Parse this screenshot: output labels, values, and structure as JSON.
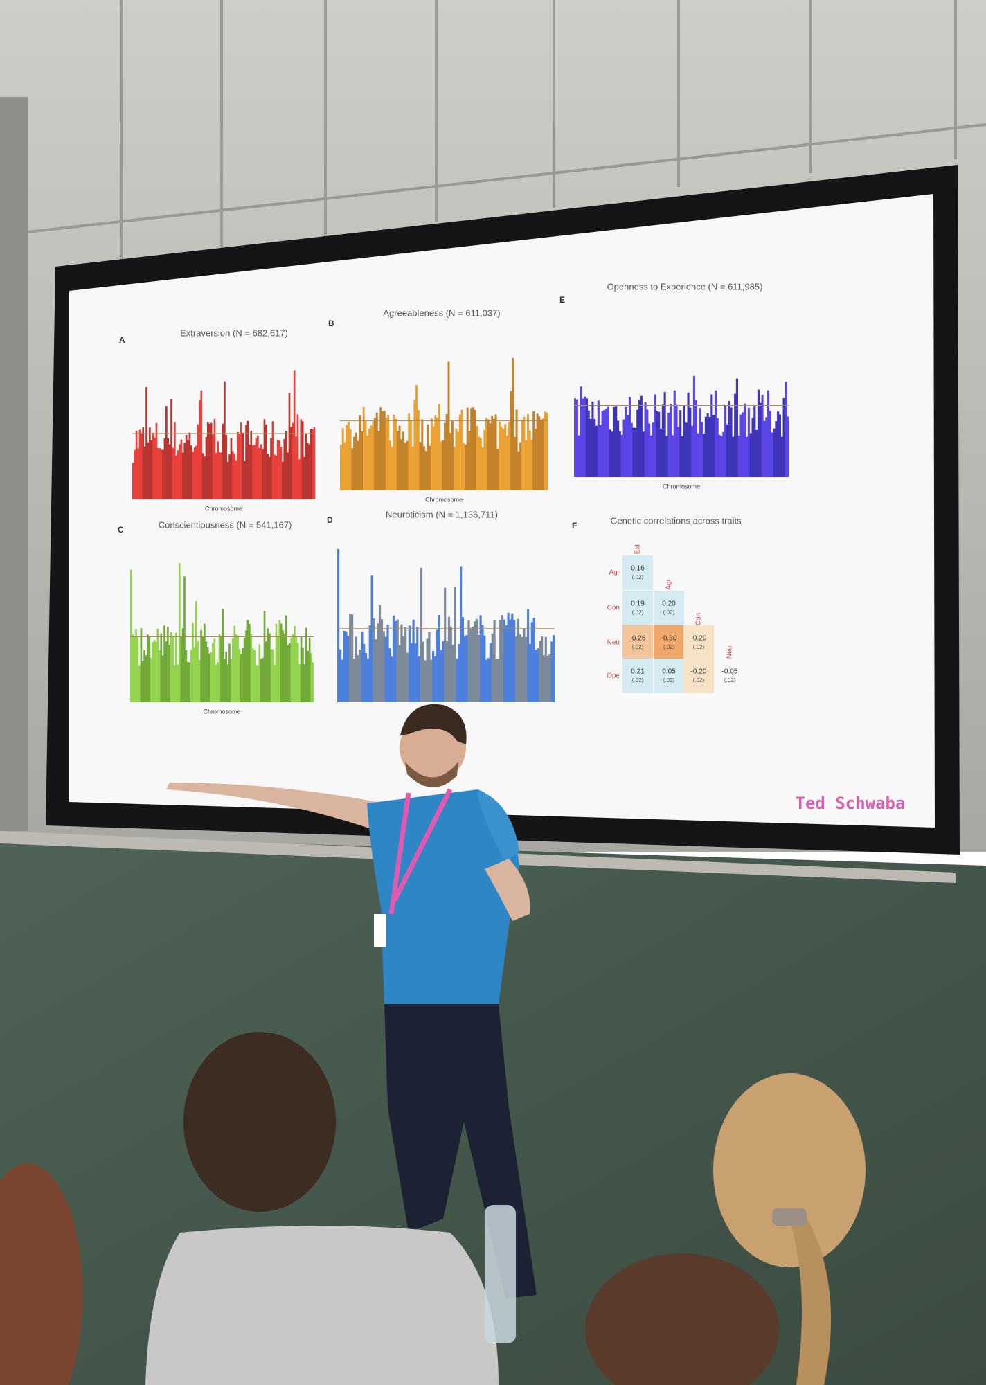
{
  "slide": {
    "panels": [
      {
        "letter": "A",
        "title": "Extraversion (N = 682,617)",
        "x_label": "Chromosome"
      },
      {
        "letter": "B",
        "title": "Agreeableness (N = 611,037)",
        "x_label": "Chromosome"
      },
      {
        "letter": "E",
        "title": "Openness to Experience (N = 611,985)",
        "x_label": "Chromosome"
      },
      {
        "letter": "C",
        "title": "Conscientiousness (N = 541,167)",
        "x_label": "Chromosome"
      },
      {
        "letter": "D",
        "title": "Neuroticism (N = 1,136,711)"
      }
    ],
    "correlations": {
      "letter": "F",
      "title": "Genetic correlations across traits",
      "columns": [
        "Ext",
        "Agr",
        "Con",
        "Neu"
      ],
      "rows": [
        {
          "label": "Agr",
          "cells": [
            {
              "value": "0.16",
              "se": "(.02)"
            }
          ]
        },
        {
          "label": "Con",
          "cells": [
            {
              "value": "0.19",
              "se": "(.02)"
            },
            {
              "value": "0.20",
              "se": "(.02)"
            }
          ]
        },
        {
          "label": "Neu",
          "cells": [
            {
              "value": "-0.26",
              "se": "(.02)"
            },
            {
              "value": "-0.30",
              "se": "(.02)"
            },
            {
              "value": "-0.20",
              "se": "(.02)"
            }
          ]
        },
        {
          "label": "Ope",
          "cells": [
            {
              "value": "0.21",
              "se": "(.02)"
            },
            {
              "value": "0.05",
              "se": "(.02)"
            },
            {
              "value": "-0.20",
              "se": "(.02)"
            },
            {
              "value": "-0.05",
              "se": "(.02)"
            }
          ]
        }
      ]
    },
    "footer": "Ted Schwaba"
  }
}
